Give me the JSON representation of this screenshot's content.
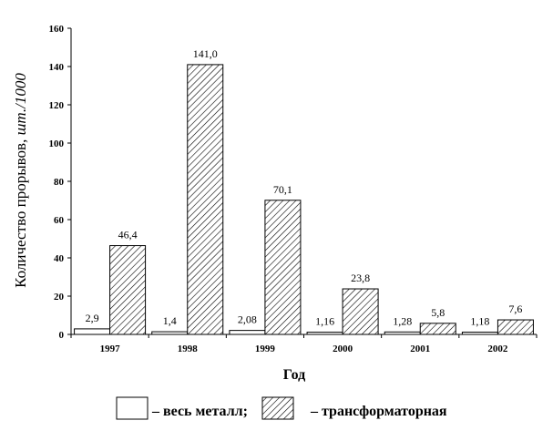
{
  "chart_data": {
    "type": "bar",
    "categories": [
      "1997",
      "1998",
      "1999",
      "2000",
      "2001",
      "2002"
    ],
    "series": [
      {
        "name": "– весь металл;",
        "values": [
          2.9,
          1.4,
          2.08,
          1.16,
          1.28,
          1.18
        ],
        "labels": [
          "2,9",
          "1,4",
          "2,08",
          "1,16",
          "1,28",
          "1,18"
        ],
        "fill": "#ffffff"
      },
      {
        "name": "– трансформаторная",
        "values": [
          46.4,
          141.0,
          70.1,
          23.8,
          5.8,
          7.6
        ],
        "labels": [
          "46,4",
          "141,0",
          "70,1",
          "23,8",
          "5,8",
          "7,6"
        ],
        "fill": "hatch"
      }
    ],
    "yticks": [
      "0",
      "20",
      "40",
      "60",
      "80",
      "100",
      "120",
      "140",
      "160"
    ],
    "ylim": [
      0,
      160
    ],
    "xlabel": "Год",
    "ylabel_main": "Количество прорывов, ",
    "ylabel_unit": "шт./1000",
    "grid": false,
    "legend_position": "bottom"
  }
}
